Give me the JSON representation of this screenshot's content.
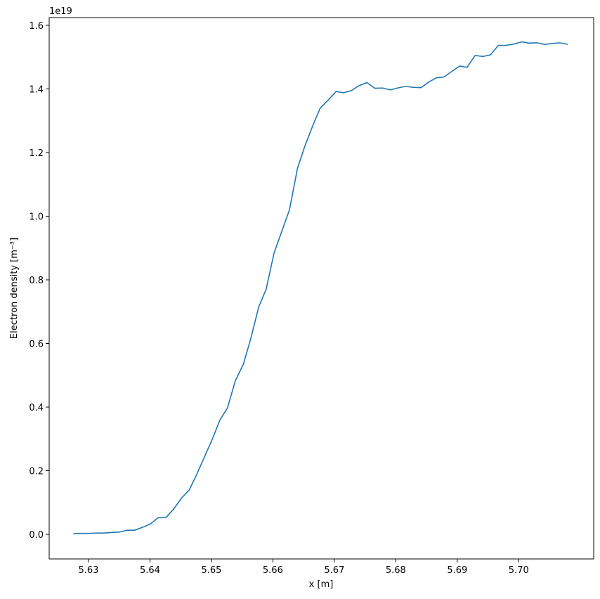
{
  "chart_data": {
    "type": "line",
    "xlabel": "x [m]",
    "ylabel": "Electron density [m⁻³]",
    "y_offset_label": "1e19",
    "x": [
      5.6275,
      5.6287,
      5.63,
      5.6313,
      5.6325,
      5.6338,
      5.635,
      5.6363,
      5.6375,
      5.6388,
      5.6401,
      5.6413,
      5.6426,
      5.6438,
      5.6451,
      5.6464,
      5.6476,
      5.6489,
      5.6501,
      5.6514,
      5.6526,
      5.6539,
      5.6552,
      5.6564,
      5.6577,
      5.6589,
      5.6602,
      5.6615,
      5.6627,
      5.664,
      5.6652,
      5.6665,
      5.6677,
      5.669,
      5.6703,
      5.6715,
      5.6728,
      5.674,
      5.6753,
      5.6766,
      5.6778,
      5.6791,
      5.6803,
      5.6816,
      5.6828,
      5.6841,
      5.6854,
      5.6866,
      5.6879,
      5.6891,
      5.6904,
      5.6916,
      5.6929,
      5.6942,
      5.6954,
      5.6967,
      5.6979,
      5.6992,
      5.7005,
      5.7017,
      5.703,
      5.7042,
      5.7055,
      5.7067,
      5.708
    ],
    "series": [
      {
        "color": "#1f77b4",
        "values": [
          0.002,
          0.003,
          0.003,
          0.004,
          0.004,
          0.006,
          0.007,
          0.013,
          0.013,
          0.022,
          0.033,
          0.052,
          0.053,
          0.078,
          0.113,
          0.14,
          0.188,
          0.245,
          0.297,
          0.36,
          0.397,
          0.483,
          0.535,
          0.615,
          0.715,
          0.77,
          0.885,
          0.955,
          1.02,
          1.15,
          1.22,
          1.285,
          1.34,
          1.365,
          1.392,
          1.388,
          1.395,
          1.41,
          1.42,
          1.402,
          1.403,
          1.397,
          1.403,
          1.408,
          1.405,
          1.404,
          1.422,
          1.435,
          1.438,
          1.455,
          1.472,
          1.468,
          1.505,
          1.502,
          1.507,
          1.537,
          1.537,
          1.541,
          1.548,
          1.544,
          1.545,
          1.54,
          1.543,
          1.545,
          1.54
        ]
      }
    ],
    "xlim": [
      5.6236,
      5.7122
    ],
    "ylim": [
      -0.0773,
      1.6243
    ],
    "xticks": [
      5.63,
      5.64,
      5.65,
      5.66,
      5.67,
      5.68,
      5.69,
      {
        "value": 5.7,
        "label": "5.70"
      }
    ],
    "yticks": [
      {
        "value": 0,
        "label": "0.0"
      },
      0.2,
      0.4,
      0.6,
      0.8,
      {
        "value": 1,
        "label": "1.0"
      },
      1.2,
      1.4,
      1.6
    ]
  }
}
